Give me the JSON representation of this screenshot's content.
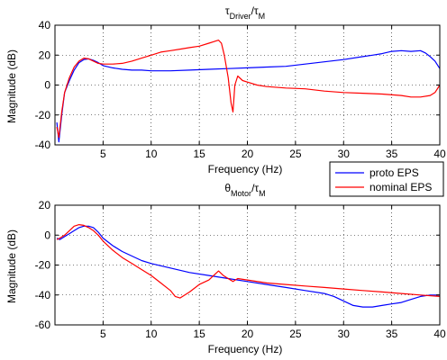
{
  "chart_data": [
    {
      "type": "line",
      "title": {
        "main": "τ",
        "main_sub": "Driver",
        "sep": "/τ",
        "den_sub": "M"
      },
      "xlabel": "Frequency (Hz)",
      "ylabel": "Magnitude (dB)",
      "xlim": [
        0,
        40
      ],
      "ylim": [
        -40,
        40
      ],
      "xticks": [
        5,
        10,
        15,
        20,
        25,
        30,
        35,
        40
      ],
      "yticks": [
        -40,
        -20,
        0,
        20,
        40
      ],
      "grid": true,
      "series": [
        {
          "name": "proto EPS",
          "color": "#0000ff",
          "x": [
            0.2,
            0.4,
            0.7,
            1.0,
            1.5,
            2.0,
            2.5,
            3.0,
            3.5,
            4.0,
            4.5,
            5.0,
            6.0,
            7.0,
            8.0,
            9.0,
            10.0,
            12.0,
            14.0,
            16.0,
            18.0,
            20.0,
            22.0,
            24.0,
            26.0,
            28.0,
            30.0,
            32.0,
            33.0,
            34.0,
            35.0,
            36.0,
            37.0,
            38.0,
            38.5,
            39.0,
            39.5,
            40.0
          ],
          "y": [
            -25,
            -38,
            -20,
            -5,
            3,
            10,
            15,
            17,
            17.5,
            16.5,
            15,
            13,
            11.5,
            10.5,
            10,
            10,
            9.5,
            9.5,
            10,
            10.5,
            11,
            11.5,
            12,
            12.5,
            14,
            15.5,
            17,
            19,
            20,
            21,
            22.5,
            23,
            22.5,
            23,
            21.5,
            19,
            16,
            11
          ]
        },
        {
          "name": "nominal EPS",
          "color": "#ff0000",
          "x": [
            0.2,
            0.4,
            0.7,
            1.0,
            1.5,
            2.0,
            2.5,
            3.0,
            3.5,
            4.0,
            4.5,
            5.0,
            6.0,
            7.0,
            8.0,
            9.0,
            10.0,
            11.0,
            12.0,
            13.0,
            14.0,
            15.0,
            16.0,
            16.5,
            17.0,
            17.3,
            17.6,
            18.0,
            18.3,
            18.5,
            18.7,
            19.0,
            19.5,
            20.0,
            21.0,
            22.0,
            24.0,
            26.0,
            28.0,
            30.0,
            32.0,
            34.0,
            36.0,
            37.0,
            38.0,
            39.0,
            39.5,
            40.0
          ],
          "y": [
            -28,
            -35,
            -18,
            -5,
            5,
            12,
            16,
            18,
            17.5,
            16,
            14.5,
            14,
            14,
            14.5,
            16,
            18,
            20,
            22,
            23,
            24,
            25,
            26,
            28,
            29,
            30,
            28,
            20,
            5,
            -12,
            -18,
            0,
            6,
            3,
            2,
            0,
            -1,
            -2,
            -2.5,
            -4,
            -5,
            -5.5,
            -6,
            -7,
            -8,
            -8,
            -7,
            -5,
            0
          ]
        }
      ]
    },
    {
      "type": "line",
      "title": {
        "main": "θ",
        "main_sub": "Motor",
        "sep": "/τ",
        "den_sub": "M"
      },
      "xlabel": "Frequency (Hz)",
      "ylabel": "Magnitude (dB)",
      "xlim": [
        0,
        40
      ],
      "ylim": [
        -60,
        20
      ],
      "xticks": [
        5,
        10,
        15,
        20,
        25,
        30,
        35,
        40
      ],
      "yticks": [
        -60,
        -40,
        -20,
        0,
        20
      ],
      "grid": true,
      "series": [
        {
          "name": "proto EPS",
          "color": "#0000ff",
          "x": [
            0.2,
            0.5,
            1.0,
            1.5,
            2.0,
            2.5,
            3.0,
            3.5,
            4.0,
            4.5,
            5.0,
            6.0,
            7.0,
            8.0,
            9.0,
            10.0,
            12.0,
            14.0,
            16.0,
            18.0,
            20.0,
            22.0,
            24.0,
            26.0,
            28.0,
            29.0,
            30.0,
            31.0,
            32.0,
            33.0,
            34.0,
            35.0,
            36.0,
            37.0,
            38.0,
            39.0,
            40.0
          ],
          "y": [
            -2,
            -3,
            -1,
            1,
            3,
            5,
            6,
            6,
            5,
            2,
            -2,
            -7,
            -11,
            -14,
            -17,
            -19,
            -22,
            -25,
            -27,
            -29,
            -31,
            -33,
            -35,
            -37,
            -39,
            -41,
            -44,
            -47,
            -48,
            -48,
            -47,
            -46,
            -45,
            -43,
            -41,
            -40,
            -40
          ]
        },
        {
          "name": "nominal EPS",
          "color": "#ff0000",
          "x": [
            0.2,
            0.5,
            1.0,
            1.5,
            2.0,
            2.5,
            3.0,
            3.5,
            4.0,
            4.5,
            5.0,
            6.0,
            7.0,
            8.0,
            9.0,
            10.0,
            11.0,
            12.0,
            12.5,
            13.0,
            14.0,
            15.0,
            16.0,
            16.5,
            17.0,
            17.5,
            18.0,
            18.5,
            19.0,
            20.0,
            22.0,
            24.0,
            26.0,
            28.0,
            30.0,
            32.0,
            34.0,
            36.0,
            38.0,
            40.0
          ],
          "y": [
            -3,
            -2,
            0,
            3,
            6,
            7,
            6.5,
            5,
            3,
            0,
            -4,
            -10,
            -15,
            -19,
            -23,
            -27,
            -32,
            -37,
            -41,
            -42,
            -38,
            -33,
            -30,
            -27,
            -24,
            -27,
            -29,
            -31,
            -29,
            -30,
            -32,
            -33,
            -34,
            -35,
            -36,
            -37,
            -38,
            -39,
            -40,
            -41
          ]
        }
      ]
    }
  ],
  "legend": {
    "items": [
      {
        "label": "proto EPS",
        "color": "#0000ff"
      },
      {
        "label": "nominal EPS",
        "color": "#ff0000"
      }
    ]
  }
}
